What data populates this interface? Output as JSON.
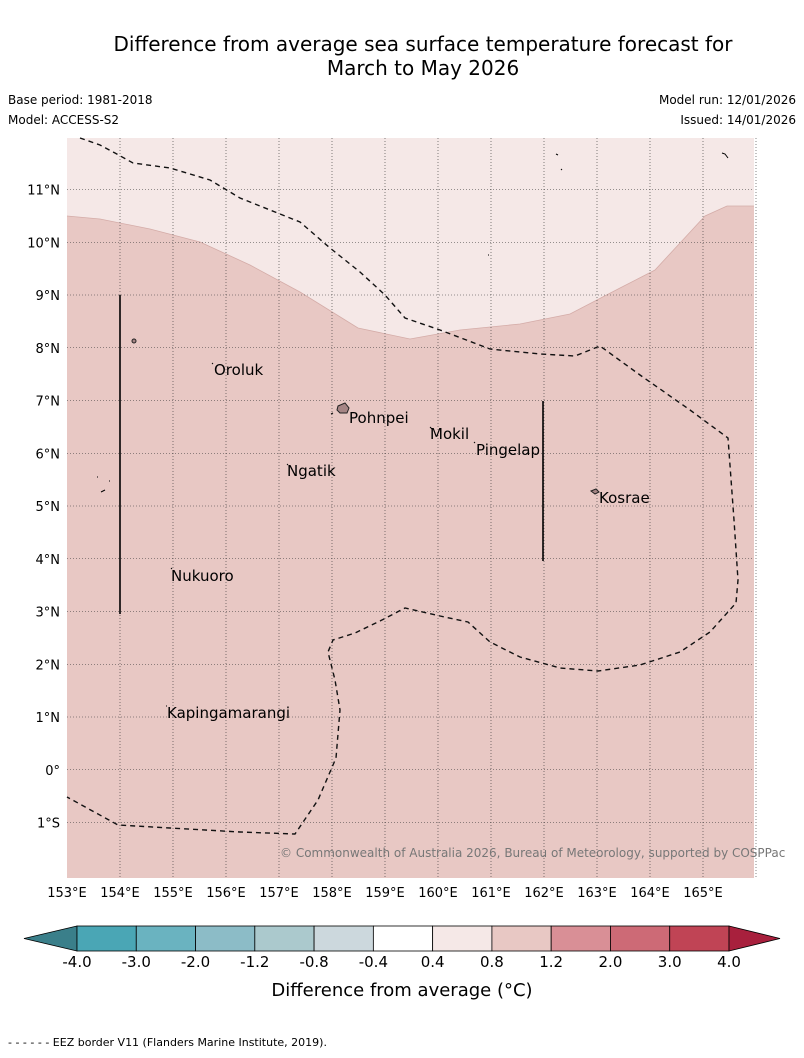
{
  "title_line1": "Difference from average sea surface temperature forecast for",
  "title_line2": "March to May 2026",
  "base_period": "Base period: 1981-2018",
  "model": "Model: ACCESS-S2",
  "model_run": "Model run: 12/01/2026",
  "issued": "Issued: 14/01/2026",
  "copyright": "© Commonwealth of Australia 2026, Bureau of Meteorology, supported by COSPPac",
  "lat_labels": [
    "11°N",
    "10°N",
    "9°N",
    "8°N",
    "7°N",
    "6°N",
    "5°N",
    "4°N",
    "3°N",
    "2°N",
    "1°N",
    "0°",
    "1°S"
  ],
  "lon_labels": [
    "153°E",
    "154°E",
    "155°E",
    "156°E",
    "157°E",
    "158°E",
    "159°E",
    "160°E",
    "161°E",
    "162°E",
    "163°E",
    "164°E",
    "165°E"
  ],
  "places": [
    "Oroluk",
    "Pohnpei",
    "Mokil",
    "Pingelap",
    "Ngatik",
    "Kosrae",
    "Nukuoro",
    "Kapingamarangi"
  ],
  "colorbar": {
    "ticks": [
      "-4.0",
      "-3.0",
      "-2.0",
      "-1.2",
      "-0.8",
      "-0.4",
      "0.4",
      "0.8",
      "1.2",
      "2.0",
      "3.0",
      "4.0"
    ],
    "colors": [
      "#4aa6b5",
      "#6ab3c0",
      "#8cbcc7",
      "#abc9cd",
      "#ccd8dd",
      "#ffffff",
      "#f5e8e7",
      "#e8c8c4",
      "#d98f96",
      "#cd6a76",
      "#c04455"
    ],
    "low_color": "#3a7f8a",
    "high_color": "#a8203d",
    "label": "Difference from average (°C)"
  },
  "field_colors": {
    "anomaly_0_4_to_0_8": "#f5e8e7",
    "anomaly_0_8_to_1_2": "#e8c8c4"
  },
  "footer": "- -  - -  - - EEZ border V11 (Flanders Marine Institute, 2019)."
}
